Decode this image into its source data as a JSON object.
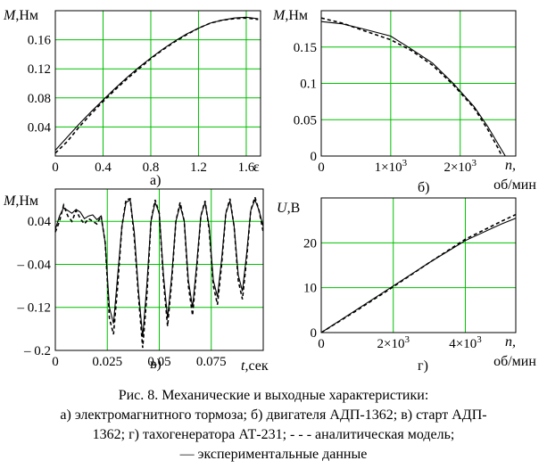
{
  "chart_data": [
    {
      "type": "line",
      "panel_label": "а)",
      "ylabel_italic": "M",
      "ylabel_unit": ",Нм",
      "xlabel": "ε",
      "xlim": [
        0,
        1.72
      ],
      "ylim": [
        0,
        0.2
      ],
      "xticks": [
        "0",
        "0.4",
        "0.8",
        "1.2",
        "1.6"
      ],
      "xtick_values": [
        0,
        0.4,
        0.8,
        1.2,
        1.6
      ],
      "yticks": [
        "0.04",
        "0.08",
        "0.12",
        "0.16"
      ],
      "ytick_values": [
        0.04,
        0.08,
        0.12,
        0.16
      ],
      "grid": true,
      "series": [
        {
          "style": "solid",
          "x": [
            0,
            0.1,
            0.2,
            0.3,
            0.4,
            0.5,
            0.6,
            0.7,
            0.8,
            0.9,
            1.0,
            1.1,
            1.2,
            1.3,
            1.4,
            1.5,
            1.6,
            1.7
          ],
          "y": [
            0.008,
            0.026,
            0.044,
            0.061,
            0.077,
            0.093,
            0.108,
            0.122,
            0.135,
            0.147,
            0.158,
            0.168,
            0.176,
            0.183,
            0.187,
            0.19,
            0.191,
            0.189
          ]
        },
        {
          "style": "dashed",
          "x": [
            0,
            0.1,
            0.2,
            0.3,
            0.4,
            0.5,
            0.6,
            0.7,
            0.8,
            0.9,
            1.0,
            1.1,
            1.2,
            1.3,
            1.4,
            1.5,
            1.6,
            1.7
          ],
          "y": [
            0.004,
            0.02,
            0.04,
            0.058,
            0.075,
            0.091,
            0.106,
            0.12,
            0.134,
            0.146,
            0.157,
            0.167,
            0.176,
            0.183,
            0.187,
            0.189,
            0.19,
            0.188
          ]
        }
      ]
    },
    {
      "type": "line",
      "panel_label": "б)",
      "ylabel_italic": "M",
      "ylabel_unit": ",Нм",
      "xlabel_italic": "n,",
      "xlabel_unit": "об/мин",
      "xlim": [
        0,
        2800
      ],
      "ylim": [
        0,
        0.2
      ],
      "xticks": [
        "0",
        "1×10³",
        "2×10³"
      ],
      "xtick_values": [
        0,
        1000,
        2000
      ],
      "yticks": [
        "0",
        "0.05",
        "0.1",
        "0.15"
      ],
      "ytick_values": [
        0,
        0.05,
        0.1,
        0.15
      ],
      "grid": true,
      "series": [
        {
          "style": "solid",
          "x": [
            0,
            300,
            600,
            1000,
            1300,
            1600,
            1900,
            2200,
            2400,
            2550,
            2650
          ],
          "y": [
            0.185,
            0.182,
            0.175,
            0.165,
            0.147,
            0.128,
            0.1,
            0.068,
            0.04,
            0.016,
            0
          ]
        },
        {
          "style": "dashed",
          "x": [
            0,
            300,
            600,
            1000,
            1300,
            1600,
            1900,
            2200,
            2400,
            2550,
            2600
          ],
          "y": [
            0.19,
            0.183,
            0.173,
            0.16,
            0.145,
            0.125,
            0.098,
            0.066,
            0.036,
            0.01,
            0
          ]
        }
      ]
    },
    {
      "type": "line",
      "panel_label": "в)",
      "ylabel_italic": "M",
      "ylabel_unit": ",Нм",
      "xlabel_italic": "t",
      "xlabel_unit": ",сек",
      "xlim": [
        0,
        0.1
      ],
      "ylim": [
        -0.2,
        0.1
      ],
      "xticks": [
        "0",
        "0.025",
        "0.05",
        "0.075"
      ],
      "xtick_values": [
        0,
        0.025,
        0.05,
        0.075
      ],
      "yticks": [
        "0.04",
        "– 0.04",
        "– 0.12",
        "– 0.2"
      ],
      "ytick_values": [
        0.04,
        -0.04,
        -0.12,
        -0.2
      ],
      "grid": true,
      "series": [
        {
          "style": "solid",
          "x": [
            0,
            0.002,
            0.004,
            0.006,
            0.008,
            0.01,
            0.012,
            0.014,
            0.016,
            0.018,
            0.02,
            0.022,
            0.024,
            0.026,
            0.028,
            0.03,
            0.032,
            0.034,
            0.036,
            0.038,
            0.04,
            0.042,
            0.044,
            0.046,
            0.048,
            0.05,
            0.052,
            0.054,
            0.056,
            0.058,
            0.06,
            0.062,
            0.064,
            0.066,
            0.068,
            0.07,
            0.072,
            0.074,
            0.076,
            0.078,
            0.08,
            0.082,
            0.084,
            0.086,
            0.088,
            0.09,
            0.092,
            0.094,
            0.096,
            0.098,
            0.1
          ],
          "y": [
            0.025,
            0.05,
            0.065,
            0.06,
            0.055,
            0.062,
            0.057,
            0.045,
            0.05,
            0.052,
            0.043,
            0.05,
            0.0,
            -0.12,
            -0.15,
            -0.06,
            0.03,
            0.075,
            0.08,
            0.02,
            -0.09,
            -0.175,
            -0.08,
            0.04,
            0.075,
            0.055,
            -0.06,
            -0.14,
            -0.06,
            0.04,
            0.07,
            0.04,
            -0.07,
            -0.12,
            -0.04,
            0.05,
            0.075,
            0.03,
            -0.07,
            -0.1,
            -0.03,
            0.055,
            0.078,
            0.03,
            -0.06,
            -0.09,
            -0.02,
            0.06,
            0.08,
            0.06,
            0.03
          ]
        },
        {
          "style": "dashed",
          "x": [
            0,
            0.002,
            0.004,
            0.006,
            0.008,
            0.01,
            0.012,
            0.014,
            0.016,
            0.018,
            0.02,
            0.022,
            0.024,
            0.026,
            0.028,
            0.03,
            0.032,
            0.034,
            0.036,
            0.038,
            0.04,
            0.042,
            0.044,
            0.046,
            0.048,
            0.05,
            0.052,
            0.054,
            0.056,
            0.058,
            0.06,
            0.062,
            0.064,
            0.066,
            0.068,
            0.07,
            0.072,
            0.074,
            0.076,
            0.078,
            0.08,
            0.082,
            0.084,
            0.086,
            0.088,
            0.09,
            0.092,
            0.094,
            0.096,
            0.098,
            0.1
          ],
          "y": [
            0.02,
            0.04,
            0.07,
            0.05,
            0.04,
            0.06,
            0.045,
            0.035,
            0.045,
            0.04,
            0.035,
            0.05,
            0.0,
            -0.14,
            -0.17,
            -0.08,
            0.03,
            0.08,
            0.082,
            0.01,
            -0.1,
            -0.195,
            -0.1,
            0.04,
            0.08,
            0.055,
            -0.07,
            -0.155,
            -0.07,
            0.04,
            0.075,
            0.04,
            -0.08,
            -0.135,
            -0.05,
            0.05,
            0.078,
            0.025,
            -0.08,
            -0.115,
            -0.04,
            0.055,
            0.082,
            0.03,
            -0.07,
            -0.105,
            -0.03,
            0.06,
            0.085,
            0.06,
            0.02
          ]
        }
      ]
    },
    {
      "type": "line",
      "panel_label": "г)",
      "ylabel_italic": "U",
      "ylabel_unit": ",В",
      "xlabel_italic": "n,",
      "xlabel_unit": "об/мин",
      "xlim": [
        0,
        5400
      ],
      "ylim": [
        0,
        30
      ],
      "xticks": [
        "0",
        "2×10³",
        "4×10³"
      ],
      "xtick_values": [
        0,
        2000,
        4000
      ],
      "yticks": [
        "0",
        "10",
        "20"
      ],
      "ytick_values": [
        0,
        10,
        20
      ],
      "grid": true,
      "series": [
        {
          "style": "solid",
          "x": [
            0,
            1000,
            2000,
            3000,
            4000,
            5000,
            5400
          ],
          "y": [
            0,
            5.2,
            10.4,
            15.6,
            20.5,
            24.2,
            25.5
          ]
        },
        {
          "style": "dashed",
          "x": [
            0,
            1000,
            2000,
            3000,
            4000,
            5000,
            5400
          ],
          "y": [
            0,
            5.0,
            10.2,
            15.6,
            20.8,
            24.8,
            26.3
          ]
        }
      ]
    }
  ],
  "caption": {
    "line1": "Рис. 8. Механические и выходные характеристики:",
    "line2": "а) электромагнитного тормоза; б) двигателя АДП-1362; в) старт АДП-",
    "line3": "1362; г) тахогенератора АТ-231; - - - аналитическая модель;",
    "line4": "— экспериментальные данные"
  },
  "colors": {
    "grid": "#00c000",
    "line": "#000000",
    "axes": "#000000"
  }
}
